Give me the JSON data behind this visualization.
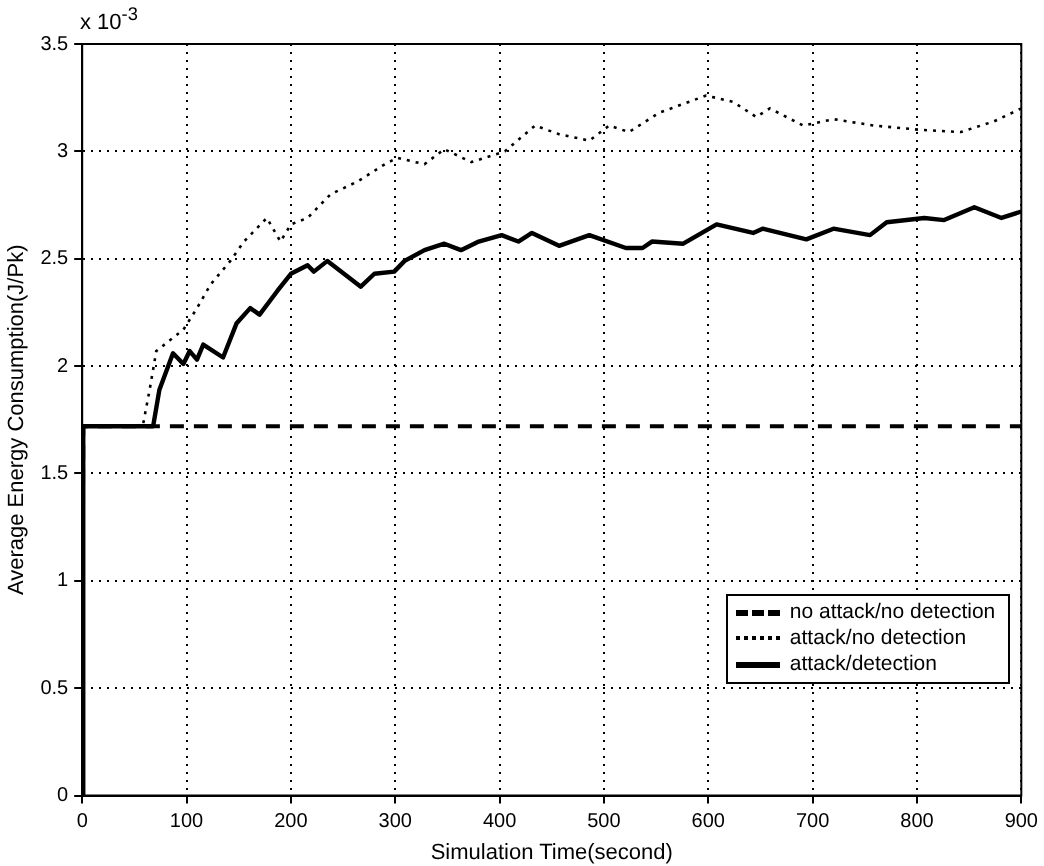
{
  "chart_data": {
    "type": "line",
    "xlabel": "Simulation Time(second)",
    "ylabel": "Average Energy Consumption(J/Pk)",
    "annotations": [
      "x 10$^{-3}$"
    ],
    "xlim": [
      0,
      900
    ],
    "xticks": [
      0,
      100,
      200,
      300,
      400,
      500,
      600,
      700,
      800,
      900
    ],
    "ylim": [
      0,
      3.5
    ],
    "yticks": [
      0,
      0.5,
      1,
      1.5,
      2,
      2.5,
      3,
      3.5
    ],
    "grid": true,
    "legend": "bottom right",
    "marker": "none",
    "series": [
      {
        "name": "no attack/no detection",
        "color": "#000000",
        "line_style": "dashed",
        "x": [
          0,
          1,
          900
        ],
        "values": [
          0,
          1.72,
          1.72
        ]
      },
      {
        "name": "attack/no detection",
        "color": "#000000",
        "line_style": "dotted",
        "x": [
          0,
          1,
          58,
          65,
          71,
          84,
          97,
          110,
          123,
          142,
          155,
          177,
          190,
          200,
          216,
          238,
          264,
          290,
          302,
          328,
          347,
          373,
          405,
          434,
          457,
          486,
          505,
          524,
          553,
          598,
          624,
          646,
          659,
          691,
          720,
          759,
          804,
          842,
          874,
          900
        ],
        "values": [
          0,
          1.72,
          1.72,
          1.9,
          2.07,
          2.12,
          2.17,
          2.27,
          2.38,
          2.49,
          2.58,
          2.69,
          2.58,
          2.66,
          2.69,
          2.8,
          2.86,
          2.94,
          2.97,
          2.94,
          3.01,
          2.95,
          3.0,
          3.12,
          3.08,
          3.05,
          3.12,
          3.09,
          3.18,
          3.26,
          3.23,
          3.16,
          3.2,
          3.12,
          3.15,
          3.12,
          3.1,
          3.09,
          3.14,
          3.2
        ]
      },
      {
        "name": "attack/detection",
        "color": "#000000",
        "line_style": "solid",
        "x": [
          0,
          1,
          68,
          74,
          87,
          97,
          103,
          110,
          116,
          135,
          148,
          161,
          170,
          187,
          200,
          216,
          222,
          235,
          267,
          280,
          299,
          309,
          328,
          347,
          363,
          380,
          402,
          418,
          431,
          457,
          486,
          521,
          537,
          546,
          576,
          608,
          643,
          652,
          694,
          720,
          755,
          771,
          807,
          826,
          855,
          881,
          900
        ],
        "values": [
          0,
          1.72,
          1.72,
          1.89,
          2.06,
          2.01,
          2.07,
          2.03,
          2.1,
          2.04,
          2.2,
          2.27,
          2.24,
          2.35,
          2.43,
          2.47,
          2.44,
          2.49,
          2.37,
          2.43,
          2.44,
          2.49,
          2.54,
          2.57,
          2.54,
          2.58,
          2.61,
          2.58,
          2.62,
          2.56,
          2.61,
          2.55,
          2.55,
          2.58,
          2.57,
          2.66,
          2.62,
          2.64,
          2.59,
          2.64,
          2.61,
          2.67,
          2.69,
          2.68,
          2.74,
          2.69,
          2.72
        ]
      }
    ]
  }
}
